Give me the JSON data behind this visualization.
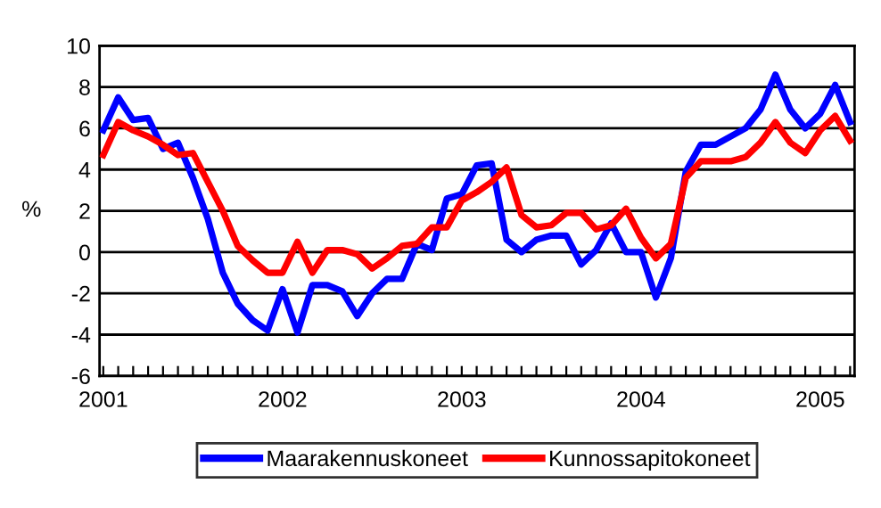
{
  "chart_data": {
    "type": "line",
    "ylabel": "%",
    "categories": [
      "2001",
      null,
      null,
      null,
      null,
      null,
      null,
      null,
      null,
      null,
      null,
      null,
      "2002",
      null,
      null,
      null,
      null,
      null,
      null,
      null,
      null,
      null,
      null,
      null,
      "2003",
      null,
      null,
      null,
      null,
      null,
      null,
      null,
      null,
      null,
      null,
      null,
      "2004",
      null,
      null,
      null,
      null,
      null,
      null,
      null,
      null,
      null,
      null,
      null,
      "2005",
      null,
      null
    ],
    "series": [
      {
        "name": "Maarakennuskoneet",
        "color": "#0000ff",
        "values": [
          5.9,
          7.5,
          6.4,
          6.5,
          5.0,
          5.3,
          3.6,
          1.6,
          -1.0,
          -2.5,
          -3.3,
          -3.8,
          -1.8,
          -3.9,
          -1.6,
          -1.6,
          -1.9,
          -3.1,
          -2.0,
          -1.3,
          -1.3,
          0.4,
          0.1,
          2.6,
          2.8,
          4.2,
          4.3,
          0.6,
          0.0,
          0.6,
          0.8,
          0.8,
          -0.6,
          0.1,
          1.4,
          0.0,
          0.0,
          -2.2,
          -0.3,
          3.9,
          5.2,
          5.2,
          5.6,
          6.0,
          6.9,
          8.6,
          6.9,
          6.0,
          6.7,
          8.1,
          6.3
        ]
      },
      {
        "name": "Kunnossapitokoneet",
        "color": "#ff0000",
        "values": [
          4.7,
          6.3,
          5.9,
          5.6,
          5.2,
          4.7,
          4.8,
          3.4,
          2.0,
          0.3,
          -0.4,
          -1.0,
          -1.0,
          0.5,
          -1.0,
          0.1,
          0.1,
          -0.1,
          -0.8,
          -0.3,
          0.3,
          0.4,
          1.2,
          1.2,
          2.5,
          2.9,
          3.4,
          4.1,
          1.8,
          1.2,
          1.3,
          1.9,
          1.9,
          1.1,
          1.3,
          2.1,
          0.7,
          -0.3,
          0.4,
          3.6,
          4.4,
          4.4,
          4.4,
          4.6,
          5.3,
          6.3,
          5.3,
          4.8,
          5.9,
          6.6,
          5.4
        ]
      }
    ],
    "ylim": [
      -6,
      10
    ],
    "yticks": [
      -6,
      -4,
      -2,
      0,
      2,
      4,
      6,
      8,
      10
    ],
    "grid": "y",
    "legend": "bottom",
    "marker": "none",
    "line_style": "solid"
  }
}
